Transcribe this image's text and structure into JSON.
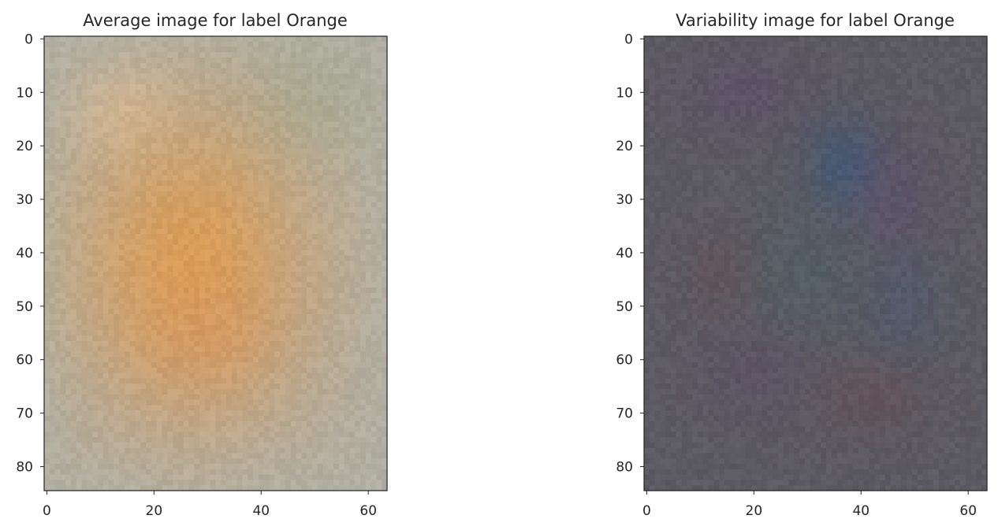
{
  "chart_data": [
    {
      "type": "heatmap",
      "title": "Average image for label Orange",
      "xlabel": "",
      "ylabel": "",
      "image_shape": [
        85,
        64
      ],
      "xlim": [
        0,
        63
      ],
      "ylim": [
        84,
        0
      ],
      "x_ticks": [
        0,
        20,
        40,
        60
      ],
      "y_ticks": [
        0,
        10,
        20,
        30,
        40,
        50,
        60,
        70,
        80
      ],
      "grid": false,
      "colors": {
        "background": "#b3ad9f",
        "border_tint": "#adb2a8",
        "center_blob": "#e09a4c",
        "inner_blob": "#d88e58",
        "top_left_highlight": "#dcc6a6",
        "top_right_tint": "#98a892"
      }
    },
    {
      "type": "heatmap",
      "title": "Variability image for label Orange",
      "xlabel": "",
      "ylabel": "",
      "image_shape": [
        85,
        64
      ],
      "xlim": [
        0,
        63
      ],
      "ylim": [
        84,
        0
      ],
      "x_ticks": [
        0,
        20,
        40,
        60
      ],
      "y_ticks": [
        0,
        10,
        20,
        30,
        40,
        50,
        60,
        70,
        80
      ],
      "grid": false,
      "colors": {
        "background": "#5c5a62",
        "blue_region": "#3f5a78",
        "purple_region": "#5f4c6c",
        "red_region": "#6e4a50",
        "teal_region": "#4c6468"
      }
    }
  ]
}
